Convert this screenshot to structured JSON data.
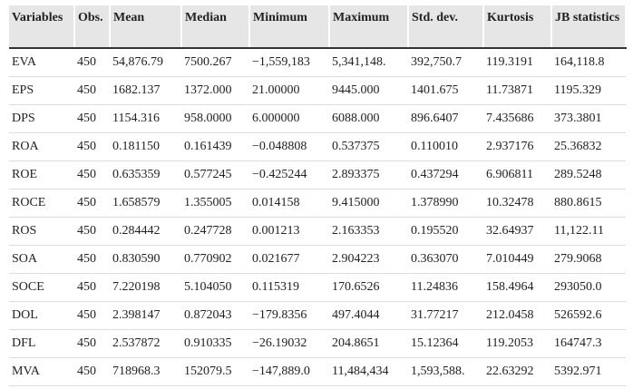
{
  "table": {
    "columns": [
      "Variables",
      "Obs.",
      "Mean",
      "Median",
      "Minimum",
      "Maximum",
      "Std. dev.",
      "Kurtosis",
      "JB statistics"
    ],
    "rows": [
      [
        "EVA",
        "450",
        "54,876.79",
        "7500.267",
        "−1,559,183",
        "5,341,148.",
        "392,750.7",
        "119.3191",
        "164,118.8"
      ],
      [
        "EPS",
        "450",
        "1682.137",
        "1372.000",
        "21.00000",
        "9445.000",
        "1401.675",
        "11.73871",
        "1195.329"
      ],
      [
        "DPS",
        "450",
        "1154.316",
        "958.0000",
        "6.000000",
        "6088.000",
        "896.6407",
        "7.435686",
        "373.3801"
      ],
      [
        "ROA",
        "450",
        "0.181150",
        "0.161439",
        "−0.048808",
        "0.537375",
        "0.110010",
        "2.937176",
        "25.36832"
      ],
      [
        "ROE",
        "450",
        "0.635359",
        "0.577245",
        "−0.425244",
        "2.893375",
        "0.437294",
        "6.906811",
        "289.5248"
      ],
      [
        "ROCE",
        "450",
        "1.658579",
        "1.355005",
        "0.014158",
        "9.415000",
        "1.378990",
        "10.32478",
        "880.8615"
      ],
      [
        "ROS",
        "450",
        "0.284442",
        "0.247728",
        "0.001213",
        "2.163353",
        "0.195520",
        "32.64937",
        "11,122.11"
      ],
      [
        "SOA",
        "450",
        "0.830590",
        "0.770902",
        "0.021677",
        "2.904223",
        "0.363070",
        "7.010449",
        "279.9068"
      ],
      [
        "SOCE",
        "450",
        "7.220198",
        "5.104050",
        "0.115319",
        "170.6526",
        "11.24836",
        "158.4964",
        "293050.0"
      ],
      [
        "DOL",
        "450",
        "2.398147",
        "0.872043",
        "−179.8356",
        "497.4044",
        "31.77217",
        "212.0458",
        "526592.6"
      ],
      [
        "DFL",
        "450",
        "2.537872",
        "0.910335",
        "−26.19032",
        "204.8651",
        "15.12364",
        "119.2053",
        "164747.3"
      ],
      [
        "MVA",
        "450",
        "718968.3",
        "152079.5",
        "−147,889.0",
        "11,484,434",
        "1,593,588.",
        "22.63292",
        "5392.971"
      ]
    ]
  }
}
